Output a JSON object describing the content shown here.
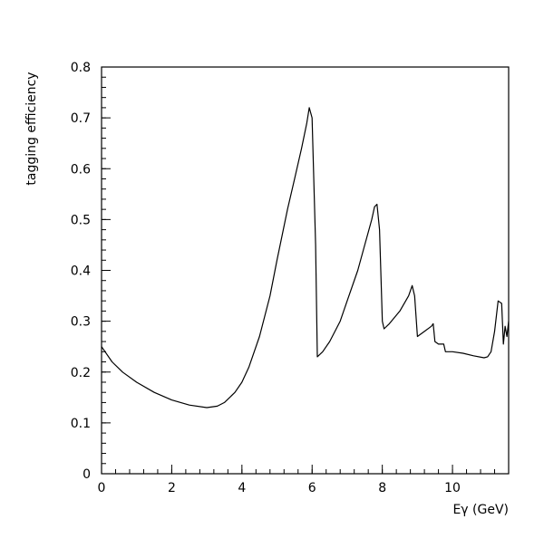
{
  "chart_data": {
    "type": "line",
    "title": "",
    "xlabel": "Eγ (GeV)",
    "ylabel": "tagging efficiency",
    "xlim": [
      0,
      11.6
    ],
    "ylim": [
      0,
      0.8
    ],
    "x_ticks": [
      0,
      2,
      4,
      6,
      8,
      10
    ],
    "x_tick_labels": [
      "0",
      "2",
      "4",
      "6",
      "8",
      "10"
    ],
    "y_ticks": [
      0,
      0.1,
      0.2,
      0.3,
      0.4,
      0.5,
      0.6,
      0.7,
      0.8
    ],
    "y_tick_labels": [
      "0",
      "0.1",
      "0.2",
      "0.3",
      "0.4",
      "0.5",
      "0.6",
      "0.7",
      "0.8"
    ],
    "grid": false,
    "legend": "none",
    "line_color": "#000000",
    "series": [
      {
        "x": [
          0,
          0.3,
          0.6,
          1.0,
          1.5,
          2.0,
          2.5,
          3.0,
          3.3,
          3.5,
          3.8,
          4.0,
          4.2,
          4.5,
          4.8,
          5.0,
          5.3,
          5.5,
          5.7,
          5.85,
          5.92,
          6.0,
          6.1,
          6.15,
          6.3,
          6.5,
          6.8,
          7.0,
          7.3,
          7.5,
          7.7,
          7.78,
          7.85,
          7.92,
          8.0,
          8.05,
          8.2,
          8.5,
          8.75,
          8.85,
          8.92,
          9.0,
          9.2,
          9.4,
          9.45,
          9.5,
          9.6,
          9.7,
          9.75,
          9.8,
          10.0,
          10.3,
          10.6,
          10.9,
          11.0,
          11.1,
          11.2,
          11.3,
          11.4,
          11.45,
          11.5,
          11.55,
          11.6
        ],
        "y": [
          0.25,
          0.22,
          0.2,
          0.18,
          0.16,
          0.145,
          0.135,
          0.13,
          0.133,
          0.14,
          0.16,
          0.18,
          0.21,
          0.27,
          0.35,
          0.42,
          0.52,
          0.58,
          0.64,
          0.69,
          0.72,
          0.7,
          0.45,
          0.23,
          0.24,
          0.26,
          0.3,
          0.34,
          0.4,
          0.45,
          0.5,
          0.525,
          0.53,
          0.48,
          0.3,
          0.285,
          0.295,
          0.32,
          0.35,
          0.37,
          0.35,
          0.27,
          0.28,
          0.29,
          0.295,
          0.26,
          0.255,
          0.255,
          0.255,
          0.24,
          0.24,
          0.237,
          0.232,
          0.228,
          0.23,
          0.24,
          0.28,
          0.34,
          0.335,
          0.255,
          0.29,
          0.27,
          0.3
        ]
      }
    ]
  }
}
